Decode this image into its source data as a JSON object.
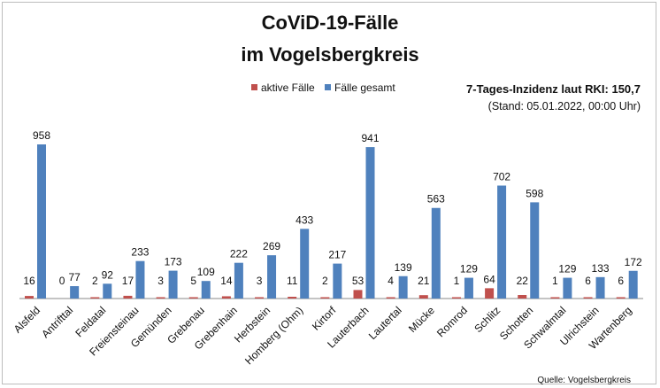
{
  "chart_data": {
    "type": "bar",
    "title": [
      "CoViD-19-Fälle",
      "im Vogelsbergkreis"
    ],
    "categories": [
      "Alsfeld",
      "Antrifttal",
      "Feldatal",
      "Freiensteinau",
      "Gemünden",
      "Grebenau",
      "Grebenhain",
      "Herbstein",
      "Homberg (Ohm)",
      "Kirtorf",
      "Lauterbach",
      "Lautertal",
      "Mücke",
      "Romrod",
      "Schlitz",
      "Schotten",
      "Schwalmtal",
      "Ulrichstein",
      "Wartenberg"
    ],
    "series": [
      {
        "name": "aktive Fälle",
        "color": "#c0504d",
        "values": [
          16,
          0,
          2,
          17,
          3,
          5,
          14,
          3,
          11,
          2,
          53,
          4,
          21,
          1,
          64,
          22,
          1,
          6,
          6
        ]
      },
      {
        "name": "Fälle gesamt",
        "color": "#4f81bd",
        "values": [
          958,
          77,
          92,
          233,
          173,
          109,
          222,
          269,
          433,
          217,
          941,
          139,
          563,
          129,
          702,
          598,
          129,
          133,
          172
        ]
      }
    ],
    "legend": "top-center",
    "grid": false,
    "annotation": [
      "7-Tages-Inzidenz laut RKI: 150,7",
      "(Stand: 05.01.2022, 00:00 Uhr)"
    ],
    "source": "Quelle: Vogelsbergkreis"
  }
}
